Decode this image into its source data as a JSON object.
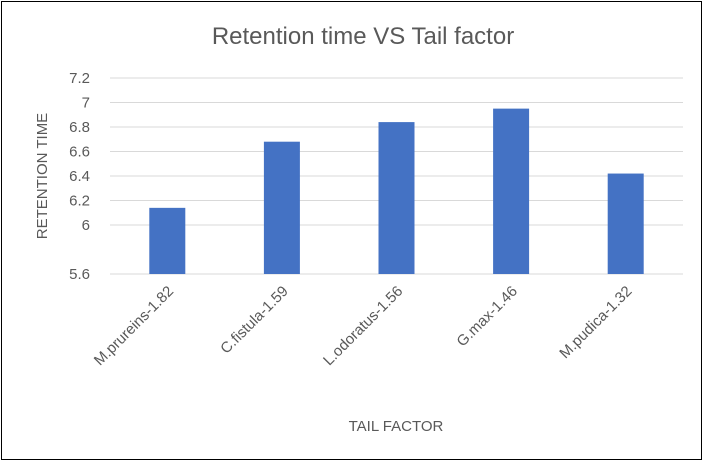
{
  "chart_data": {
    "type": "bar",
    "title": "Retention time VS Tail factor",
    "xlabel": "TAIL FACTOR",
    "ylabel": "RETENTION TIME",
    "categories": [
      "M.prureins-1.82",
      "C.fistula-1.59",
      "L.odoratus-1.56",
      "G.max-1.46",
      "M.pudica-1.32"
    ],
    "values": [
      6.14,
      6.68,
      6.84,
      6.95,
      6.42
    ],
    "ylim": [
      5.6,
      7.2
    ],
    "yticks": [
      "5.6",
      "6",
      "6.2",
      "6.4",
      "6.6",
      "6.8",
      "7",
      "7.2"
    ],
    "grid": true,
    "legend": "none",
    "bar_color": "#4472c4"
  }
}
